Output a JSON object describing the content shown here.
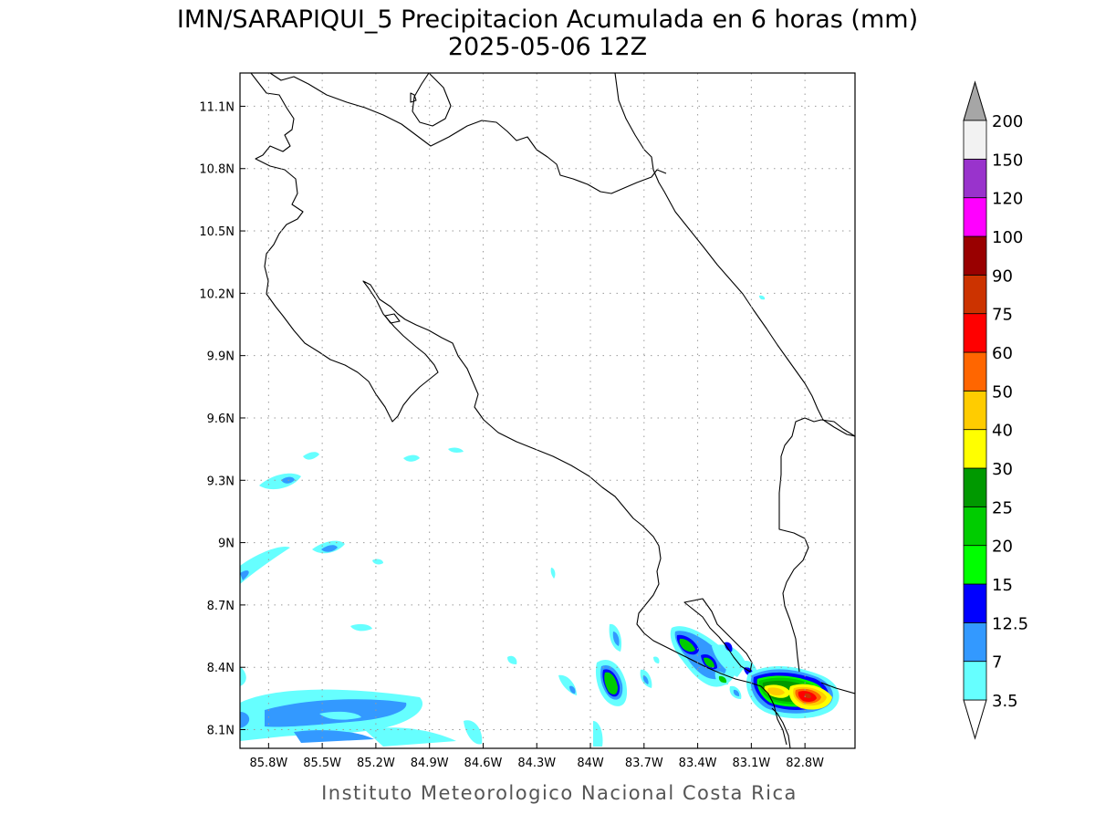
{
  "title_line1": "IMN/SARAPIQUI_5 Precipitacion Acumulada en 6 horas (mm)",
  "title_line2": "2025-05-06 12Z",
  "credit": "Instituto Meteorologico Nacional Costa Rica",
  "map": {
    "lon_ticks": [
      {
        "value": -85.8,
        "label": "85.8W"
      },
      {
        "value": -85.5,
        "label": "85.5W"
      },
      {
        "value": -85.2,
        "label": "85.2W"
      },
      {
        "value": -84.9,
        "label": "84.9W"
      },
      {
        "value": -84.6,
        "label": "84.6W"
      },
      {
        "value": -84.3,
        "label": "84.3W"
      },
      {
        "value": -84.0,
        "label": "84W"
      },
      {
        "value": -83.7,
        "label": "83.7W"
      },
      {
        "value": -83.4,
        "label": "83.4W"
      },
      {
        "value": -83.1,
        "label": "83.1W"
      },
      {
        "value": -82.8,
        "label": "82.8W"
      }
    ],
    "lat_ticks": [
      {
        "value": 8.1,
        "label": "8.1N"
      },
      {
        "value": 8.4,
        "label": "8.4N"
      },
      {
        "value": 8.7,
        "label": "8.7N"
      },
      {
        "value": 9.0,
        "label": "9N"
      },
      {
        "value": 9.3,
        "label": "9.3N"
      },
      {
        "value": 9.6,
        "label": "9.6N"
      },
      {
        "value": 9.9,
        "label": "9.9N"
      },
      {
        "value": 10.2,
        "label": "10.2N"
      },
      {
        "value": 10.5,
        "label": "10.5N"
      },
      {
        "value": 10.8,
        "label": "10.8N"
      },
      {
        "value": 11.1,
        "label": "11.1N"
      }
    ],
    "lon_range": [
      -85.96,
      -82.52
    ],
    "lat_range": [
      8.01,
      11.26
    ],
    "grid": true
  },
  "colorbar": {
    "levels": [
      "3.5",
      "7",
      "12.5",
      "15",
      "20",
      "25",
      "30",
      "40",
      "50",
      "60",
      "75",
      "90",
      "100",
      "120",
      "150",
      "200"
    ],
    "colors": [
      "#66ffff",
      "#3399ff",
      "#0000ff",
      "#00ff00",
      "#00cc00",
      "#009900",
      "#ffff00",
      "#ffcc00",
      "#ff6600",
      "#ff0000",
      "#cc3300",
      "#990000",
      "#ff00ff",
      "#9933cc",
      "#f2f2f2"
    ],
    "over_color": "#a6a6a6",
    "under_color": "#ffffff"
  },
  "precip_cells": [
    {
      "lon": -82.77,
      "lat": 8.26,
      "level": 9
    },
    {
      "lon": -82.7,
      "lat": 8.28,
      "level": 7
    },
    {
      "lon": -82.93,
      "lat": 8.29,
      "level": 6
    },
    {
      "lon": -82.84,
      "lat": 8.29,
      "level": 5
    },
    {
      "lon": -83.51,
      "lat": 8.48,
      "level": 4
    },
    {
      "lon": -83.38,
      "lat": 8.43,
      "level": 4
    },
    {
      "lon": -83.88,
      "lat": 8.34,
      "level": 5
    },
    {
      "lon": -83.33,
      "lat": 8.34,
      "level": 3
    },
    {
      "lon": -83.1,
      "lat": 8.33,
      "level": 3
    },
    {
      "lon": -82.96,
      "lat": 8.32,
      "level": 4
    },
    {
      "lon": -83.26,
      "lat": 8.48,
      "level": 2
    },
    {
      "lon": -85.45,
      "lat": 8.99,
      "level": 1
    },
    {
      "lon": -85.72,
      "lat": 9.31,
      "level": 1
    },
    {
      "lon": -85.5,
      "lat": 8.15,
      "level": 1
    },
    {
      "lon": -85.2,
      "lat": 8.14,
      "level": 1
    }
  ]
}
